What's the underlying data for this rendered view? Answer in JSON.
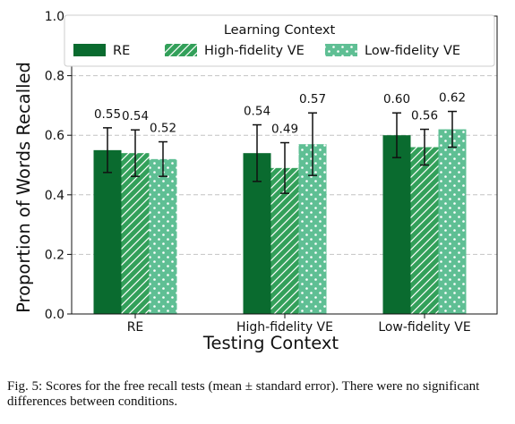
{
  "chart_data": {
    "type": "bar",
    "xlabel": "Testing Context",
    "ylabel": "Proportion of Words Recalled",
    "ylim": [
      0,
      1.0
    ],
    "yticks": [
      "0.0",
      "0.2",
      "0.4",
      "0.6",
      "0.8",
      "1.0"
    ],
    "grid": "horizontal dashed",
    "categories": [
      "RE",
      "High-fidelity VE",
      "Low-fidelity VE"
    ],
    "legend": {
      "title": "Learning Context",
      "placement": "top"
    },
    "series": [
      {
        "name": "RE",
        "values": [
          0.55,
          0.54,
          0.6
        ],
        "labels": [
          "0.55",
          "0.54",
          "0.60"
        ],
        "errors": [
          0.075,
          0.095,
          0.075
        ],
        "color": "#0a6b2f",
        "pattern": "solid"
      },
      {
        "name": "High-fidelity VE",
        "values": [
          0.54,
          0.49,
          0.56
        ],
        "labels": [
          "0.54",
          "0.49",
          "0.56"
        ],
        "errors": [
          0.078,
          0.085,
          0.06
        ],
        "color": "#33a05a",
        "pattern": "hatch"
      },
      {
        "name": "Low-fidelity VE",
        "values": [
          0.52,
          0.57,
          0.62
        ],
        "labels": [
          "0.52",
          "0.57",
          "0.62"
        ],
        "errors": [
          0.058,
          0.105,
          0.06
        ],
        "color": "#5fbf94",
        "pattern": "dots"
      }
    ]
  },
  "caption": "Fig. 5: Scores for the free recall tests (mean ± standard error). There were no significant differences between conditions."
}
